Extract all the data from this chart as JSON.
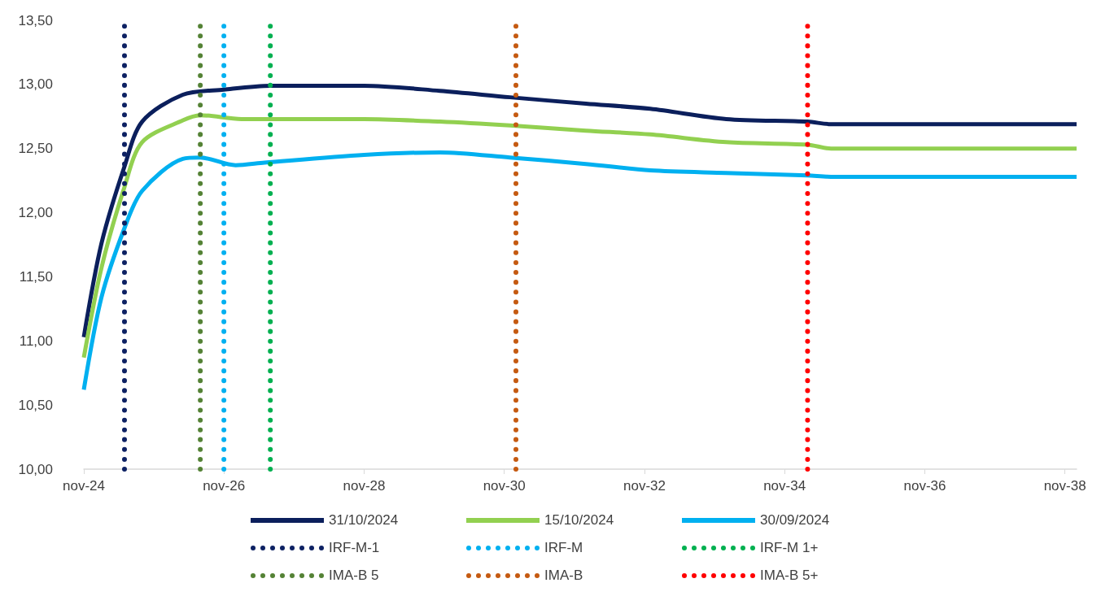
{
  "chart_data": {
    "type": "line",
    "xlim": [
      "2024-11",
      "2039-01"
    ],
    "xticks": [
      {
        "value": "2024-11",
        "label": "nov-24"
      },
      {
        "value": "2026-11",
        "label": "nov-26"
      },
      {
        "value": "2028-11",
        "label": "nov-28"
      },
      {
        "value": "2030-11",
        "label": "nov-30"
      },
      {
        "value": "2032-11",
        "label": "nov-32"
      },
      {
        "value": "2034-11",
        "label": "nov-34"
      },
      {
        "value": "2036-11",
        "label": "nov-36"
      },
      {
        "value": "2038-11",
        "label": "nov-38"
      }
    ],
    "ylim": [
      10,
      13.5
    ],
    "yticks": [
      {
        "value": 10,
        "label": "10,00"
      },
      {
        "value": 10.5,
        "label": "10,50"
      },
      {
        "value": 11,
        "label": "11,00"
      },
      {
        "value": 11.5,
        "label": "11,50"
      },
      {
        "value": 12,
        "label": "12,00"
      },
      {
        "value": 12.5,
        "label": "12,50"
      },
      {
        "value": 13,
        "label": "13,00"
      },
      {
        "value": 13.5,
        "label": "13,50"
      }
    ],
    "grid": false,
    "legend": "bottom",
    "marker": "none",
    "line_style": "solid",
    "series": [
      {
        "name": "31/10/2024",
        "color": "#0b1f5c",
        "x": [
          "2024-11",
          "2025-02",
          "2025-06",
          "2025-09",
          "2026-04",
          "2026-11",
          "2027-07",
          "2028-11",
          "2029-12",
          "2030-12",
          "2032-01",
          "2032-12",
          "2034-01",
          "2035-03",
          "2035-07",
          "2039-01"
        ],
        "values": [
          11.03,
          11.76,
          12.36,
          12.71,
          12.92,
          12.96,
          12.99,
          12.99,
          12.95,
          12.9,
          12.85,
          12.81,
          12.73,
          12.71,
          12.69,
          12.69
        ]
      },
      {
        "name": "15/10/2024",
        "color": "#92d050",
        "x": [
          "2024-11",
          "2025-02",
          "2025-06",
          "2025-09",
          "2026-04",
          "2026-07",
          "2027-02",
          "2028-11",
          "2029-12",
          "2030-12",
          "2032-01",
          "2032-12",
          "2034-01",
          "2035-03",
          "2035-07",
          "2039-01"
        ],
        "values": [
          10.87,
          11.57,
          12.2,
          12.55,
          12.72,
          12.76,
          12.73,
          12.73,
          12.71,
          12.68,
          12.64,
          12.61,
          12.55,
          12.53,
          12.5,
          12.5
        ]
      },
      {
        "name": "30/09/2024",
        "color": "#00b0f0",
        "x": [
          "2024-11",
          "2025-02",
          "2025-06",
          "2025-09",
          "2026-04",
          "2026-07",
          "2027-01",
          "2027-06",
          "2028-11",
          "2029-12",
          "2030-12",
          "2032-01",
          "2032-12",
          "2034-01",
          "2035-03",
          "2035-07",
          "2039-01"
        ],
        "values": [
          10.62,
          11.34,
          11.88,
          12.17,
          12.42,
          12.43,
          12.37,
          12.39,
          12.45,
          12.47,
          12.43,
          12.38,
          12.33,
          12.31,
          12.29,
          12.28,
          12.28
        ]
      },
      {
        "name": "IRF-M-1",
        "color": "#0d2163",
        "line_style": "dotted",
        "x": [
          "2025-06",
          "2025-06"
        ],
        "values": [
          10,
          13.5
        ]
      },
      {
        "name": "IRF-M",
        "color": "#00b0f0",
        "line_style": "dotted",
        "x": [
          "2026-11",
          "2026-11"
        ],
        "values": [
          10,
          13.5
        ]
      },
      {
        "name": "IRF-M 1+",
        "color": "#00b050",
        "line_style": "dotted",
        "x": [
          "2027-07",
          "2027-07"
        ],
        "values": [
          10,
          13.5
        ]
      },
      {
        "name": "IMA-B 5",
        "color": "#548235",
        "line_style": "dotted",
        "x": [
          "2026-07",
          "2026-07"
        ],
        "values": [
          10,
          13.5
        ]
      },
      {
        "name": "IMA-B",
        "color": "#c55a11",
        "line_style": "dotted",
        "x": [
          "2031-01",
          "2031-01"
        ],
        "values": [
          10,
          13.5
        ]
      },
      {
        "name": "IMA-B 5+",
        "color": "#ff0000",
        "line_style": "dotted",
        "x": [
          "2035-03",
          "2035-03"
        ],
        "values": [
          10,
          13.5
        ]
      }
    ]
  }
}
